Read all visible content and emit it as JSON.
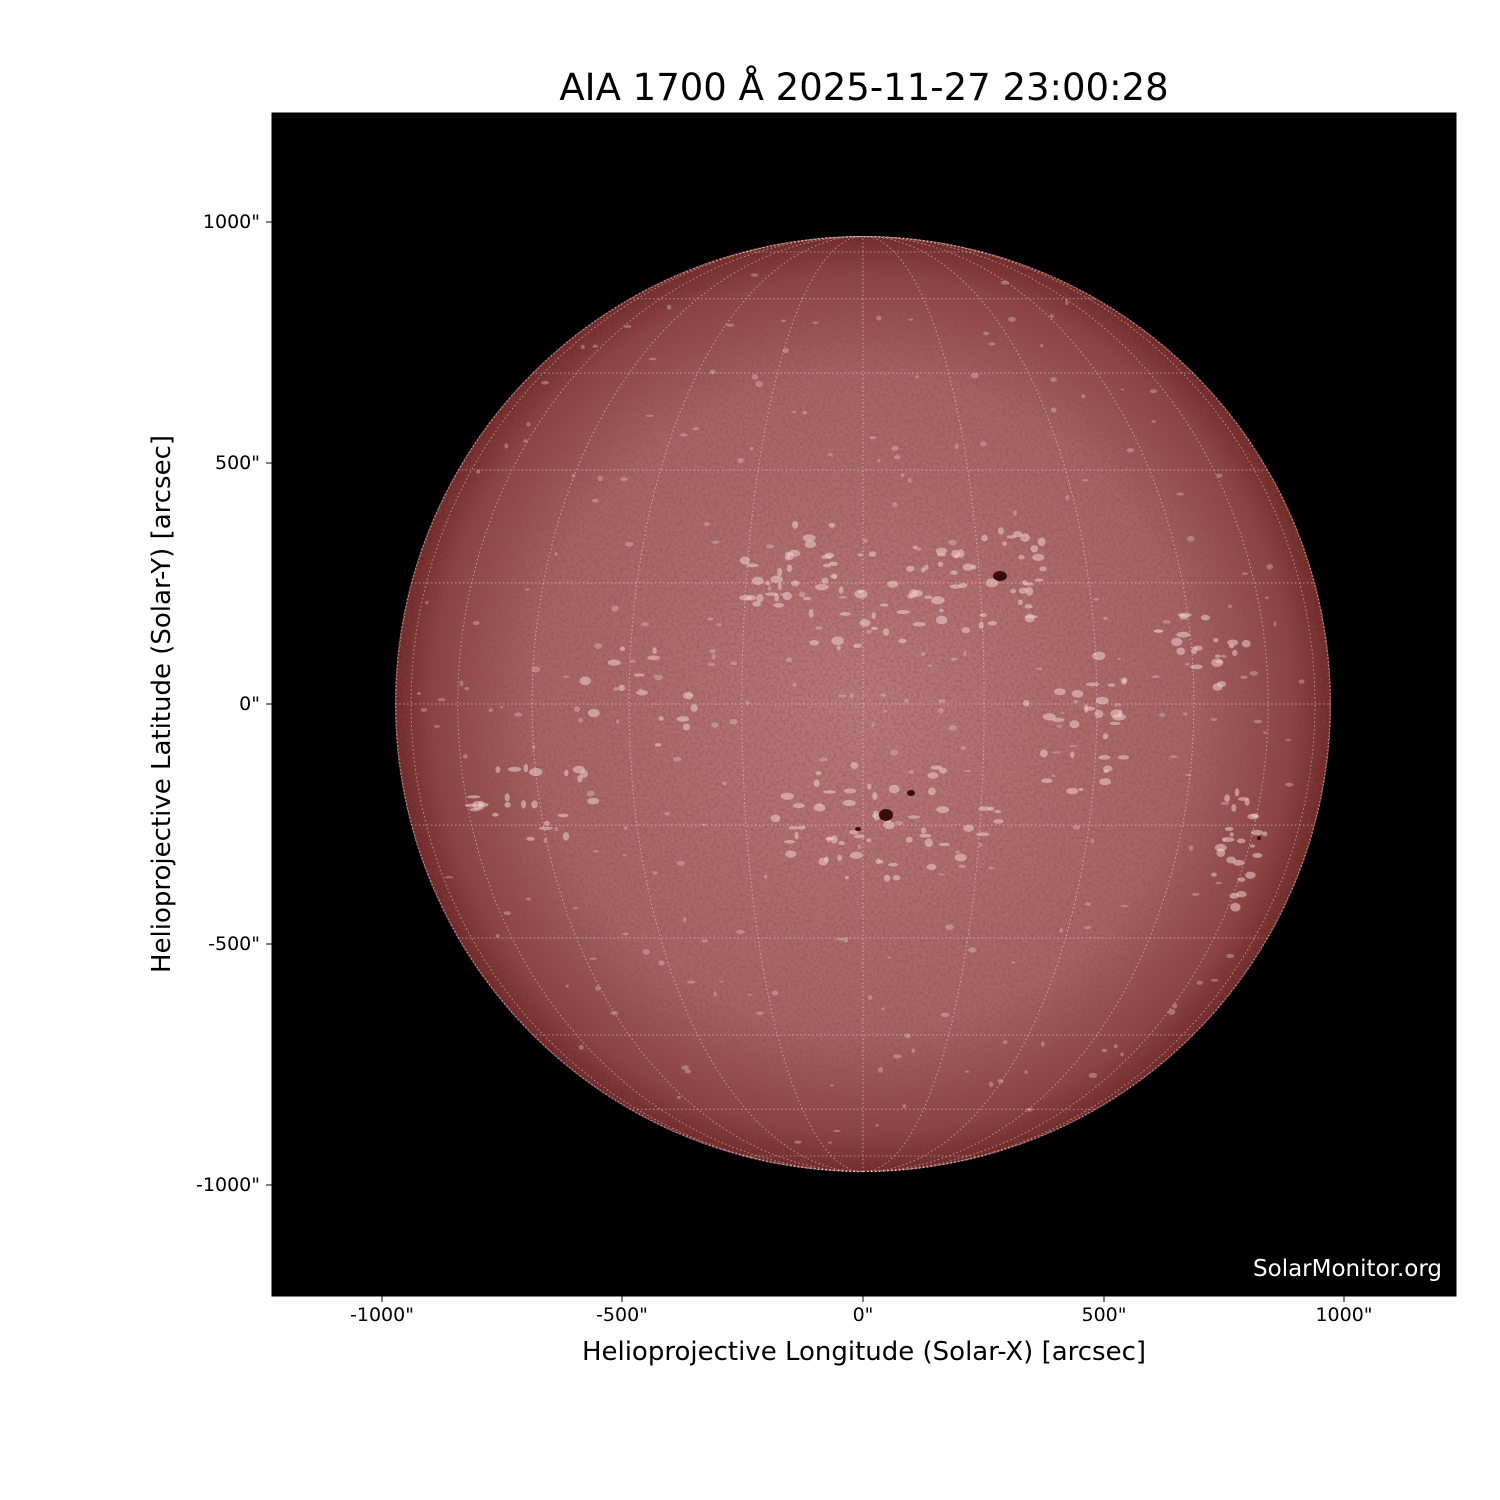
{
  "title": "AIA 1700 Å 2025-11-27 23:00:28",
  "xlabel": "Helioprojective Longitude (Solar-X) [arcsec]",
  "ylabel": "Helioprojective Latitude (Solar-Y) [arcsec]",
  "xticks": [
    "-1000\"",
    "-500\"",
    "0\"",
    "500\"",
    "1000\""
  ],
  "yticks": [
    "1000\"",
    "500\"",
    "0\"",
    "-500\"",
    "-1000\""
  ],
  "watermark": "SolarMonitor.org",
  "instrument": "AIA",
  "wavelength": "1700 Å",
  "observation_time": "2025-11-27 23:00:28",
  "colors": {
    "background": "#000000",
    "disk_center": "#b67a7a",
    "disk_limb": "#6e2a2a",
    "plage": "#f0d0d0",
    "sunspot": "#3a0c0c",
    "grid": "#ffffff"
  }
}
